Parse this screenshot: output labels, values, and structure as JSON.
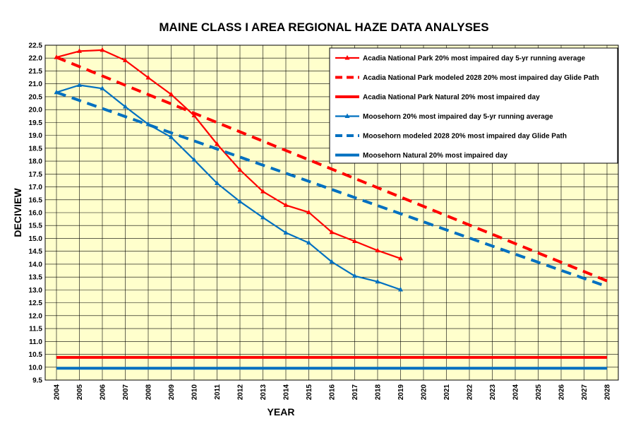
{
  "chart_data": {
    "type": "line",
    "title": "MAINE CLASS I AREA REGIONAL HAZE DATA ANALYSES",
    "xlabel": "YEAR",
    "ylabel": "DECIVIEW",
    "xlim": [
      2004,
      2028
    ],
    "ylim": [
      9.5,
      22.5
    ],
    "y_tick_step": 0.5,
    "grid": true,
    "legend_position": "top-right",
    "background_color": "#ffffcc",
    "series": [
      {
        "name": "Acadia National Park 20% most impaired day 5-yr running average",
        "color": "#ff0000",
        "style": "solid-marker",
        "x": [
          2004,
          2005,
          2006,
          2007,
          2008,
          2009,
          2010,
          2011,
          2012,
          2013,
          2014,
          2015,
          2016,
          2017,
          2018,
          2019
        ],
        "y": [
          22.03,
          22.27,
          22.31,
          21.91,
          21.24,
          20.59,
          19.77,
          18.66,
          17.66,
          16.82,
          16.29,
          16.01,
          15.24,
          14.89,
          14.53,
          14.22
        ]
      },
      {
        "name": "Acadia National Park modeled 2028 20% most impaired day Glide Path",
        "color": "#ff0000",
        "style": "dashed",
        "x": [
          2004,
          2028
        ],
        "y": [
          22.03,
          13.35
        ]
      },
      {
        "name": "Acadia National Park Natural 20% most impaired day",
        "color": "#ff0000",
        "style": "solid",
        "x": [
          2004,
          2028
        ],
        "y": [
          10.38,
          10.38
        ]
      },
      {
        "name": "Moosehorn 20% most impaired day 5-yr running average",
        "color": "#0070c0",
        "style": "solid-marker",
        "x": [
          2004,
          2005,
          2006,
          2007,
          2008,
          2009,
          2010,
          2011,
          2012,
          2013,
          2014,
          2015,
          2016,
          2017,
          2018,
          2019
        ],
        "y": [
          20.67,
          20.95,
          20.82,
          20.11,
          19.43,
          18.93,
          18.05,
          17.14,
          16.43,
          15.81,
          15.22,
          14.83,
          14.09,
          13.54,
          13.32,
          13.01
        ]
      },
      {
        "name": "Moosehorn modeled 2028 20% most impaired day Glide Path",
        "color": "#0070c0",
        "style": "dashed",
        "x": [
          2004,
          2028
        ],
        "y": [
          20.67,
          13.13
        ]
      },
      {
        "name": "Moosehorn Natural 20% most impaired day",
        "color": "#0070c0",
        "style": "solid",
        "x": [
          2004,
          2028
        ],
        "y": [
          9.96,
          9.96
        ]
      }
    ]
  }
}
